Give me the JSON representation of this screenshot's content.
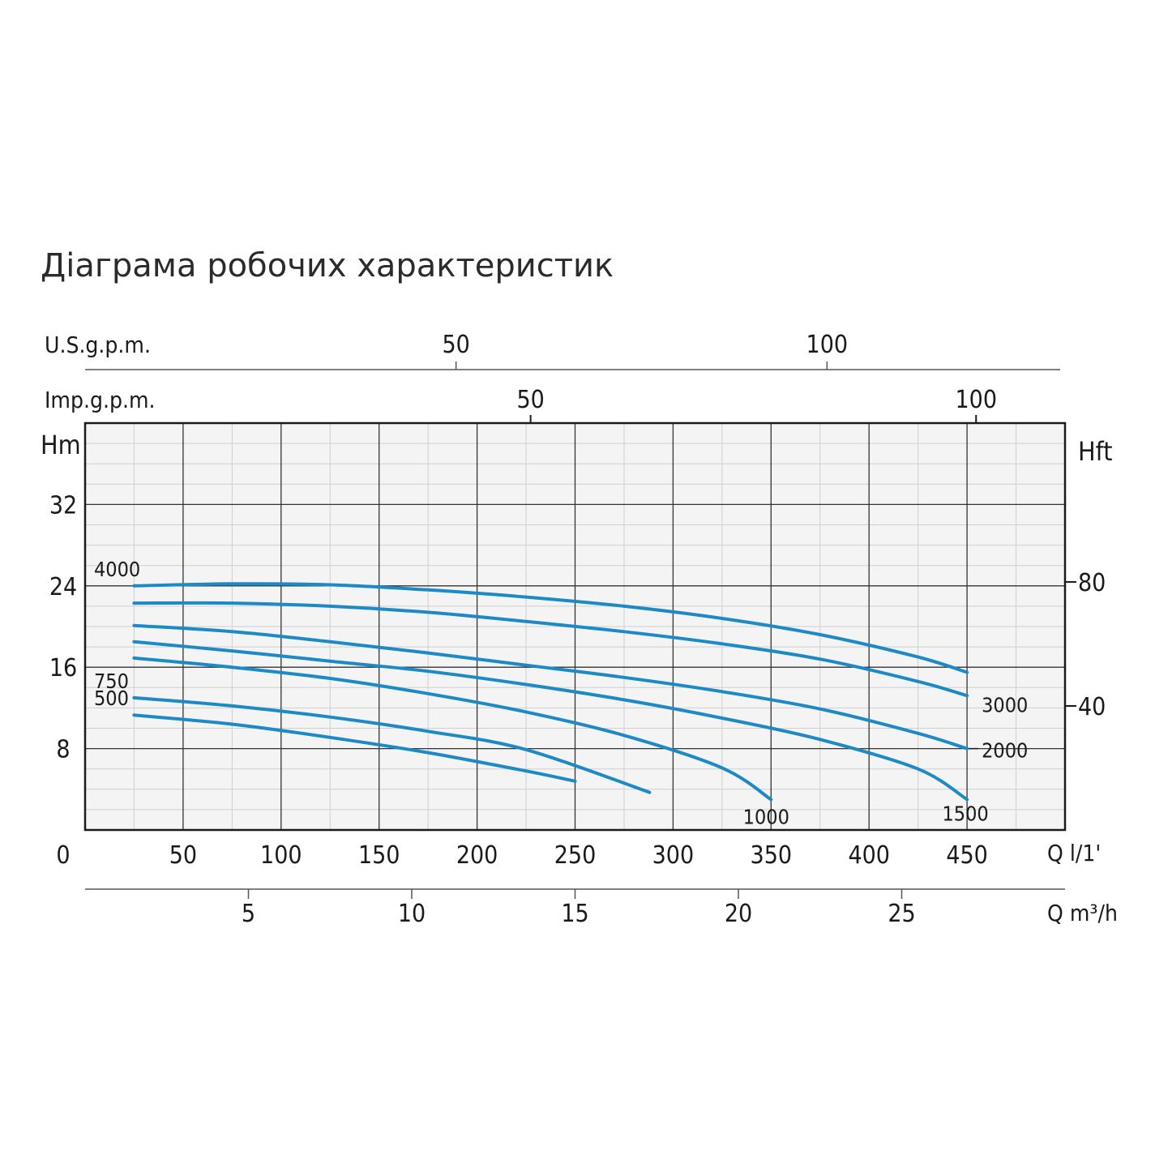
{
  "title": "Діаграма робочих характеристик",
  "chart_data": {
    "type": "line",
    "title": "Діаграма робочих характеристик",
    "x_axis_lpm": {
      "label": "Q l/1'",
      "ticks": [
        "0",
        "50",
        "100",
        "150",
        "200",
        "250",
        "300",
        "350",
        "400",
        "450"
      ],
      "range": [
        0,
        500
      ]
    },
    "x_axis_m3h": {
      "label": "Q m³/h",
      "ticks": [
        "5",
        "10",
        "15",
        "20",
        "25"
      ]
    },
    "top_axis_usgpm": {
      "label": "U.S.g.p.m.",
      "ticks": [
        "50",
        "100"
      ]
    },
    "top_axis_impgpm": {
      "label": "Imp.g.p.m.",
      "ticks": [
        "50",
        "100"
      ]
    },
    "y_axis_left": {
      "label": "Hm",
      "ticks": [
        "8",
        "16",
        "24",
        "32"
      ],
      "range": [
        0,
        40
      ]
    },
    "y_axis_right": {
      "label": "Hft",
      "ticks": [
        "40",
        "80"
      ]
    },
    "grid": true,
    "series_color": "#1d8ac6",
    "series": [
      {
        "name": "4000",
        "label_pos": "start",
        "x": [
          25,
          75,
          125,
          175,
          225,
          275,
          325,
          375,
          425,
          450
        ],
        "y": [
          24,
          24.2,
          24.1,
          23.6,
          22.9,
          22,
          20.8,
          19.2,
          17,
          15.5
        ]
      },
      {
        "name": "3000",
        "label_pos": "end",
        "x": [
          25,
          75,
          125,
          175,
          225,
          275,
          325,
          375,
          425,
          450
        ],
        "y": [
          22.3,
          22.3,
          22,
          21.4,
          20.5,
          19.5,
          18.3,
          16.8,
          14.6,
          13.2
        ]
      },
      {
        "name": "2000",
        "label_pos": "end",
        "x": [
          25,
          75,
          125,
          175,
          225,
          275,
          325,
          375,
          425,
          450
        ],
        "y": [
          20.1,
          19.5,
          18.5,
          17.4,
          16.2,
          15,
          13.6,
          11.9,
          9.5,
          8
        ]
      },
      {
        "name": "1500",
        "label_pos": "end",
        "x": [
          25,
          75,
          125,
          175,
          225,
          275,
          325,
          375,
          425,
          450
        ],
        "y": [
          18.5,
          17.6,
          16.6,
          15.6,
          14.3,
          12.8,
          11,
          8.9,
          6,
          3
        ]
      },
      {
        "name": "1000",
        "label_pos": "end",
        "x": [
          25,
          75,
          125,
          175,
          225,
          275,
          325,
          350
        ],
        "y": [
          16.9,
          16,
          14.9,
          13.4,
          11.6,
          9.3,
          6.1,
          3
        ]
      },
      {
        "name": "750",
        "label_pos": "start",
        "x": [
          25,
          75,
          125,
          175,
          225,
          288
        ],
        "y": [
          13,
          12.2,
          11.1,
          9.7,
          7.9,
          3.7
        ]
      },
      {
        "name": "500",
        "label_pos": "start",
        "x": [
          25,
          75,
          125,
          175,
          225,
          250
        ],
        "y": [
          11.3,
          10.4,
          9.1,
          7.6,
          5.8,
          4.8
        ]
      }
    ]
  }
}
